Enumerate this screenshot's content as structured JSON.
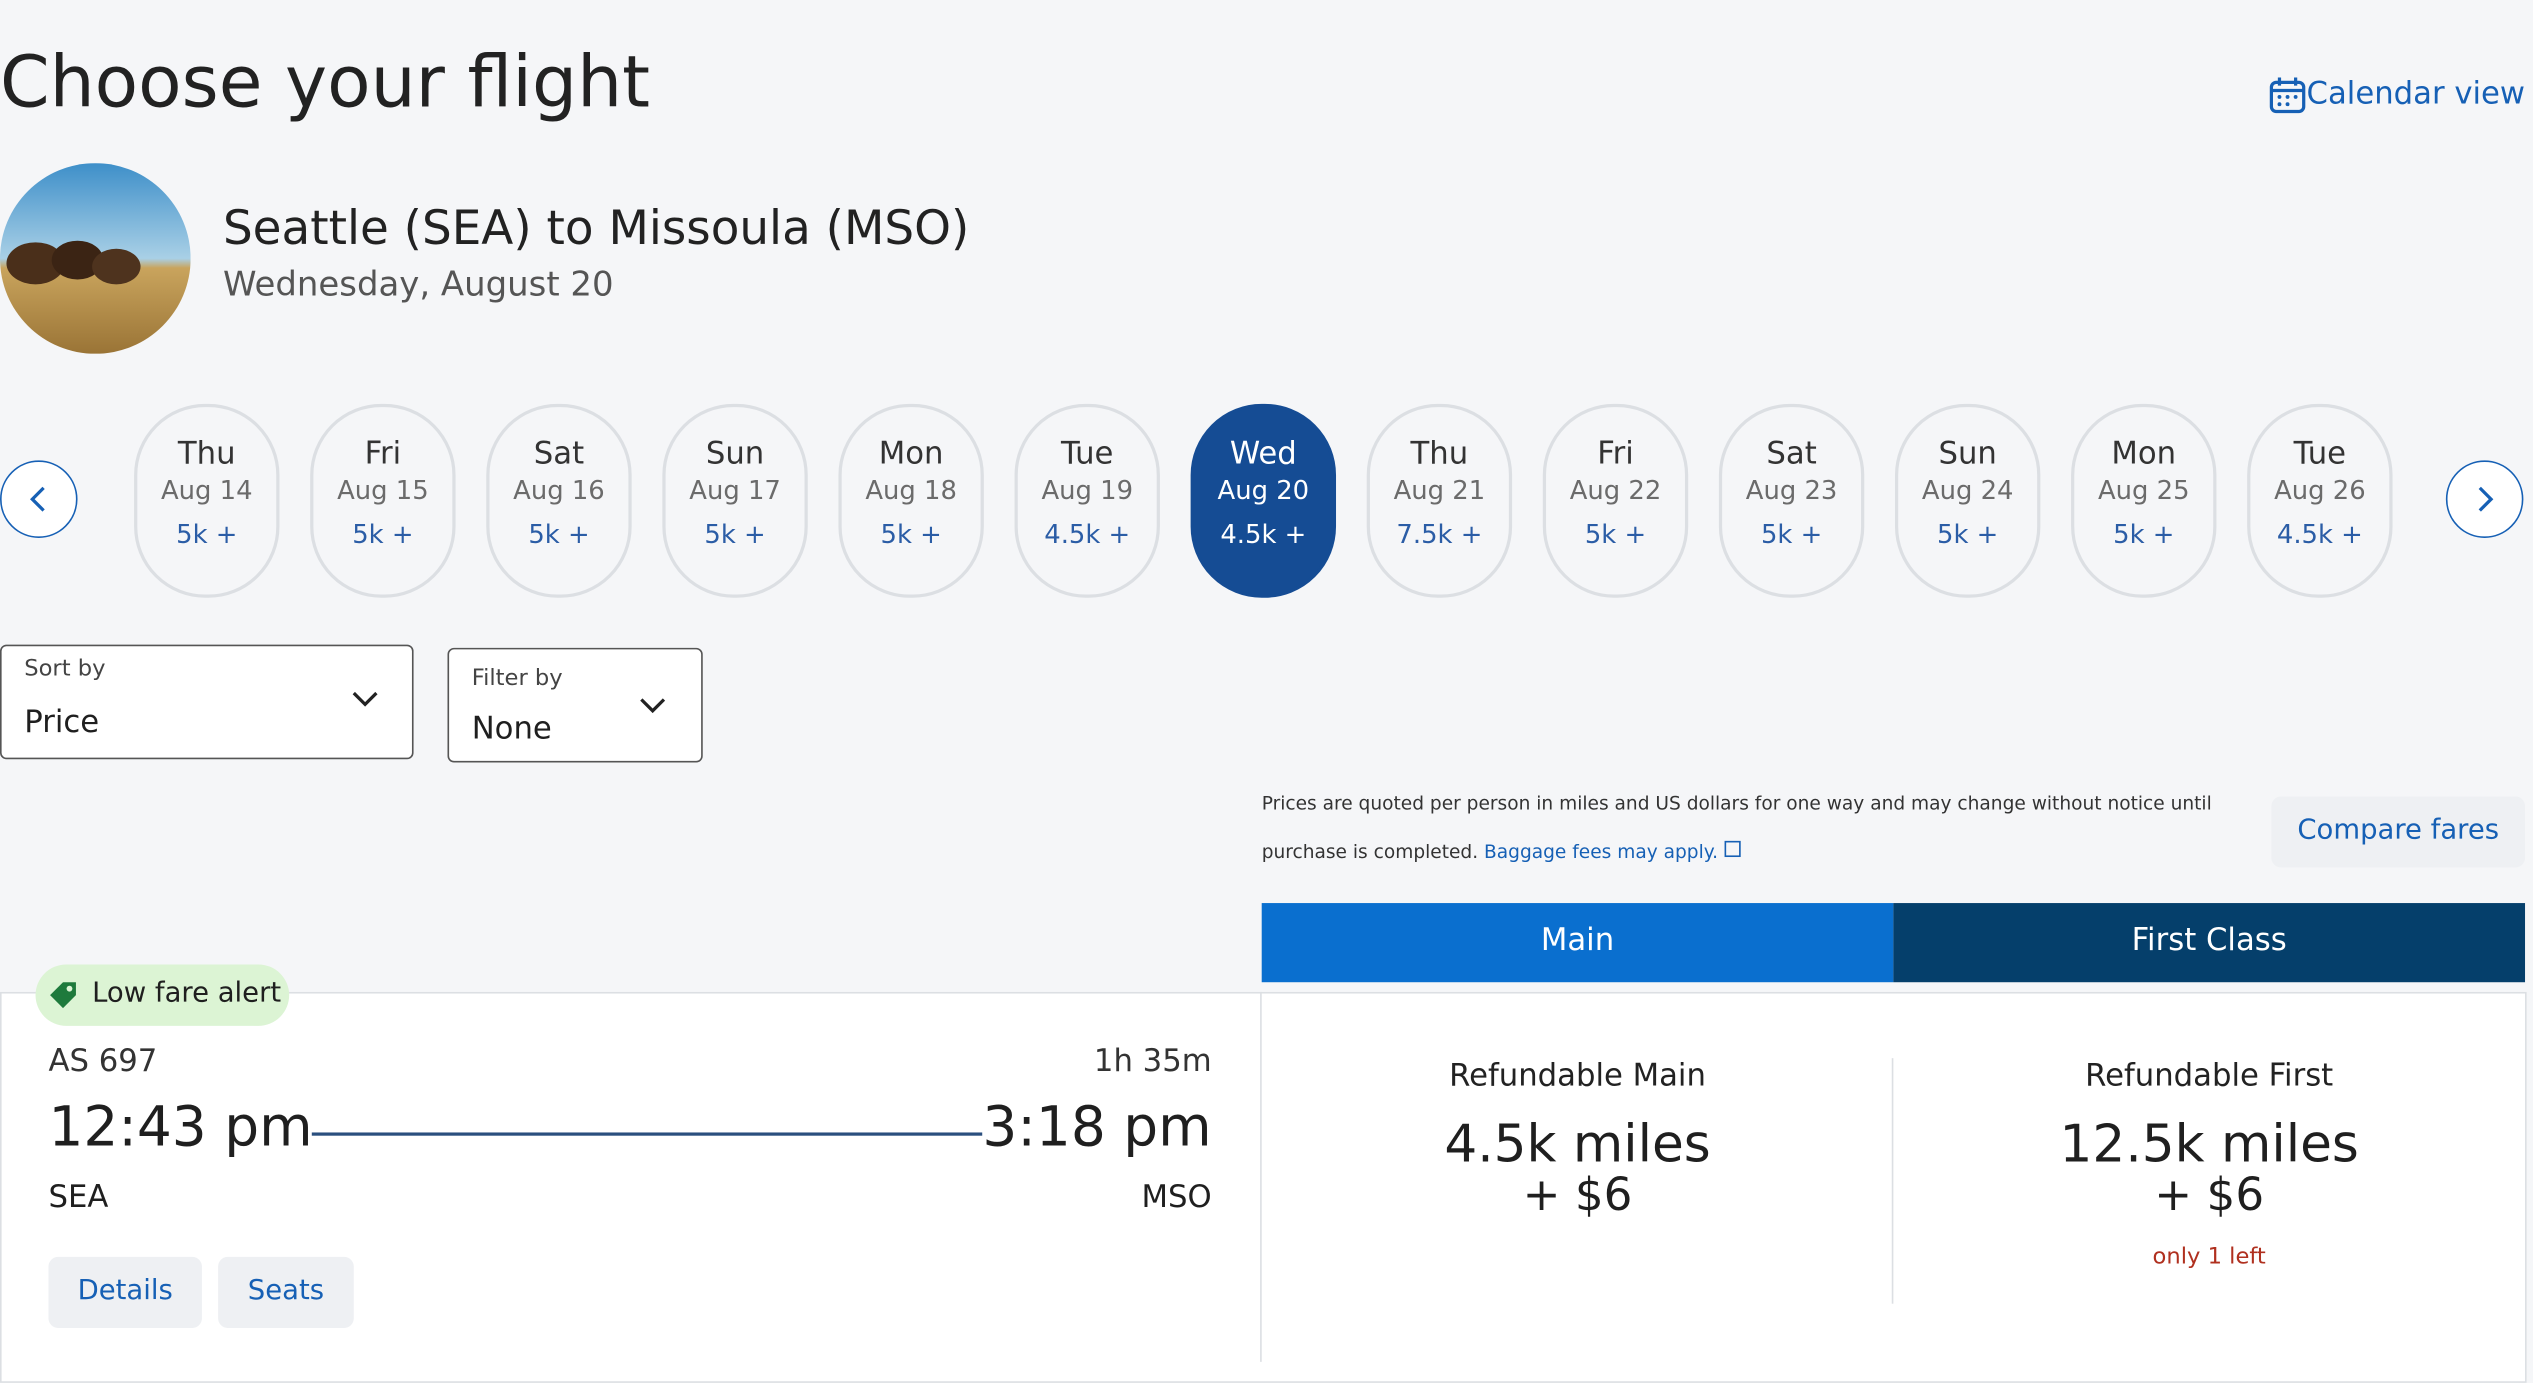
{
  "header": {
    "title": "Choose your flight",
    "calendar_view": "Calendar view",
    "route": "Seattle (SEA) to Missoula (MSO)",
    "date": "Wednesday, August 20"
  },
  "dates": [
    {
      "day": "Thu",
      "date": "Aug 14",
      "price": "5k +"
    },
    {
      "day": "Fri",
      "date": "Aug 15",
      "price": "5k +"
    },
    {
      "day": "Sat",
      "date": "Aug 16",
      "price": "5k +"
    },
    {
      "day": "Sun",
      "date": "Aug 17",
      "price": "5k +"
    },
    {
      "day": "Mon",
      "date": "Aug 18",
      "price": "5k +"
    },
    {
      "day": "Tue",
      "date": "Aug 19",
      "price": "4.5k +"
    },
    {
      "day": "Wed",
      "date": "Aug 20",
      "price": "4.5k +",
      "selected": true
    },
    {
      "day": "Thu",
      "date": "Aug 21",
      "price": "7.5k +"
    },
    {
      "day": "Fri",
      "date": "Aug 22",
      "price": "5k +"
    },
    {
      "day": "Sat",
      "date": "Aug 23",
      "price": "5k +"
    },
    {
      "day": "Sun",
      "date": "Aug 24",
      "price": "5k +"
    },
    {
      "day": "Mon",
      "date": "Aug 25",
      "price": "5k +"
    },
    {
      "day": "Tue",
      "date": "Aug 26",
      "price": "4.5k +"
    }
  ],
  "sort": {
    "label": "Sort by",
    "value": "Price"
  },
  "filter": {
    "label": "Filter by",
    "value": "None"
  },
  "notice": {
    "line1": "Prices are quoted per person in miles and US dollars for one way and may change without notice until",
    "line2": "purchase is completed.",
    "link": "Baggage fees may apply."
  },
  "compare_fares": "Compare fares",
  "tabs": [
    "Main",
    "First Class"
  ],
  "flight": {
    "badge": "Low fare alert",
    "number": "AS 697",
    "duration": "1h 35m",
    "depart": "12:43 pm",
    "arrive": "3:18 pm",
    "from": "SEA",
    "to": "MSO",
    "details": "Details",
    "seats": "Seats"
  },
  "fares": [
    {
      "name": "Refundable Main",
      "miles": "4.5k miles",
      "cash": "+ $6"
    },
    {
      "name": "Refundable First",
      "miles": "12.5k miles",
      "cash": "+ $6",
      "note": "only 1 left"
    }
  ]
}
